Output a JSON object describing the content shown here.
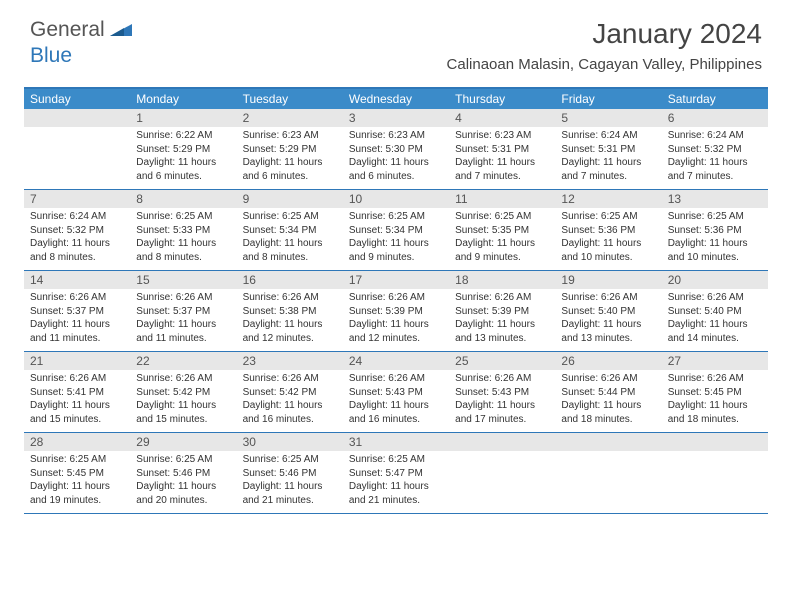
{
  "logo": {
    "general": "General",
    "blue": "Blue"
  },
  "title": "January 2024",
  "location": "Calinaoan Malasin, Cagayan Valley, Philippines",
  "colors": {
    "header_bar": "#3b8bc9",
    "week_border": "#2e77b8",
    "daynum_bg": "#e7e7e7",
    "text": "#333333"
  },
  "dow": [
    "Sunday",
    "Monday",
    "Tuesday",
    "Wednesday",
    "Thursday",
    "Friday",
    "Saturday"
  ],
  "weeks": [
    {
      "nums": [
        "",
        "1",
        "2",
        "3",
        "4",
        "5",
        "6"
      ],
      "details": [
        {
          "sunrise": "",
          "sunset": "",
          "daylight": ""
        },
        {
          "sunrise": "Sunrise: 6:22 AM",
          "sunset": "Sunset: 5:29 PM",
          "daylight": "Daylight: 11 hours and 6 minutes."
        },
        {
          "sunrise": "Sunrise: 6:23 AM",
          "sunset": "Sunset: 5:29 PM",
          "daylight": "Daylight: 11 hours and 6 minutes."
        },
        {
          "sunrise": "Sunrise: 6:23 AM",
          "sunset": "Sunset: 5:30 PM",
          "daylight": "Daylight: 11 hours and 6 minutes."
        },
        {
          "sunrise": "Sunrise: 6:23 AM",
          "sunset": "Sunset: 5:31 PM",
          "daylight": "Daylight: 11 hours and 7 minutes."
        },
        {
          "sunrise": "Sunrise: 6:24 AM",
          "sunset": "Sunset: 5:31 PM",
          "daylight": "Daylight: 11 hours and 7 minutes."
        },
        {
          "sunrise": "Sunrise: 6:24 AM",
          "sunset": "Sunset: 5:32 PM",
          "daylight": "Daylight: 11 hours and 7 minutes."
        }
      ]
    },
    {
      "nums": [
        "7",
        "8",
        "9",
        "10",
        "11",
        "12",
        "13"
      ],
      "details": [
        {
          "sunrise": "Sunrise: 6:24 AM",
          "sunset": "Sunset: 5:32 PM",
          "daylight": "Daylight: 11 hours and 8 minutes."
        },
        {
          "sunrise": "Sunrise: 6:25 AM",
          "sunset": "Sunset: 5:33 PM",
          "daylight": "Daylight: 11 hours and 8 minutes."
        },
        {
          "sunrise": "Sunrise: 6:25 AM",
          "sunset": "Sunset: 5:34 PM",
          "daylight": "Daylight: 11 hours and 8 minutes."
        },
        {
          "sunrise": "Sunrise: 6:25 AM",
          "sunset": "Sunset: 5:34 PM",
          "daylight": "Daylight: 11 hours and 9 minutes."
        },
        {
          "sunrise": "Sunrise: 6:25 AM",
          "sunset": "Sunset: 5:35 PM",
          "daylight": "Daylight: 11 hours and 9 minutes."
        },
        {
          "sunrise": "Sunrise: 6:25 AM",
          "sunset": "Sunset: 5:36 PM",
          "daylight": "Daylight: 11 hours and 10 minutes."
        },
        {
          "sunrise": "Sunrise: 6:25 AM",
          "sunset": "Sunset: 5:36 PM",
          "daylight": "Daylight: 11 hours and 10 minutes."
        }
      ]
    },
    {
      "nums": [
        "14",
        "15",
        "16",
        "17",
        "18",
        "19",
        "20"
      ],
      "details": [
        {
          "sunrise": "Sunrise: 6:26 AM",
          "sunset": "Sunset: 5:37 PM",
          "daylight": "Daylight: 11 hours and 11 minutes."
        },
        {
          "sunrise": "Sunrise: 6:26 AM",
          "sunset": "Sunset: 5:37 PM",
          "daylight": "Daylight: 11 hours and 11 minutes."
        },
        {
          "sunrise": "Sunrise: 6:26 AM",
          "sunset": "Sunset: 5:38 PM",
          "daylight": "Daylight: 11 hours and 12 minutes."
        },
        {
          "sunrise": "Sunrise: 6:26 AM",
          "sunset": "Sunset: 5:39 PM",
          "daylight": "Daylight: 11 hours and 12 minutes."
        },
        {
          "sunrise": "Sunrise: 6:26 AM",
          "sunset": "Sunset: 5:39 PM",
          "daylight": "Daylight: 11 hours and 13 minutes."
        },
        {
          "sunrise": "Sunrise: 6:26 AM",
          "sunset": "Sunset: 5:40 PM",
          "daylight": "Daylight: 11 hours and 13 minutes."
        },
        {
          "sunrise": "Sunrise: 6:26 AM",
          "sunset": "Sunset: 5:40 PM",
          "daylight": "Daylight: 11 hours and 14 minutes."
        }
      ]
    },
    {
      "nums": [
        "21",
        "22",
        "23",
        "24",
        "25",
        "26",
        "27"
      ],
      "details": [
        {
          "sunrise": "Sunrise: 6:26 AM",
          "sunset": "Sunset: 5:41 PM",
          "daylight": "Daylight: 11 hours and 15 minutes."
        },
        {
          "sunrise": "Sunrise: 6:26 AM",
          "sunset": "Sunset: 5:42 PM",
          "daylight": "Daylight: 11 hours and 15 minutes."
        },
        {
          "sunrise": "Sunrise: 6:26 AM",
          "sunset": "Sunset: 5:42 PM",
          "daylight": "Daylight: 11 hours and 16 minutes."
        },
        {
          "sunrise": "Sunrise: 6:26 AM",
          "sunset": "Sunset: 5:43 PM",
          "daylight": "Daylight: 11 hours and 16 minutes."
        },
        {
          "sunrise": "Sunrise: 6:26 AM",
          "sunset": "Sunset: 5:43 PM",
          "daylight": "Daylight: 11 hours and 17 minutes."
        },
        {
          "sunrise": "Sunrise: 6:26 AM",
          "sunset": "Sunset: 5:44 PM",
          "daylight": "Daylight: 11 hours and 18 minutes."
        },
        {
          "sunrise": "Sunrise: 6:26 AM",
          "sunset": "Sunset: 5:45 PM",
          "daylight": "Daylight: 11 hours and 18 minutes."
        }
      ]
    },
    {
      "nums": [
        "28",
        "29",
        "30",
        "31",
        "",
        "",
        ""
      ],
      "details": [
        {
          "sunrise": "Sunrise: 6:25 AM",
          "sunset": "Sunset: 5:45 PM",
          "daylight": "Daylight: 11 hours and 19 minutes."
        },
        {
          "sunrise": "Sunrise: 6:25 AM",
          "sunset": "Sunset: 5:46 PM",
          "daylight": "Daylight: 11 hours and 20 minutes."
        },
        {
          "sunrise": "Sunrise: 6:25 AM",
          "sunset": "Sunset: 5:46 PM",
          "daylight": "Daylight: 11 hours and 21 minutes."
        },
        {
          "sunrise": "Sunrise: 6:25 AM",
          "sunset": "Sunset: 5:47 PM",
          "daylight": "Daylight: 11 hours and 21 minutes."
        },
        {
          "sunrise": "",
          "sunset": "",
          "daylight": ""
        },
        {
          "sunrise": "",
          "sunset": "",
          "daylight": ""
        },
        {
          "sunrise": "",
          "sunset": "",
          "daylight": ""
        }
      ]
    }
  ]
}
